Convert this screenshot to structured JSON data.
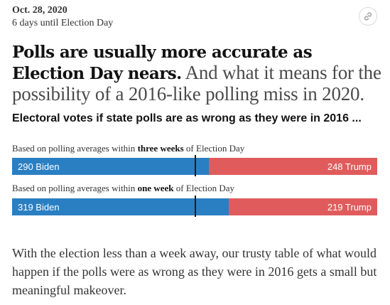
{
  "header": {
    "date": "Oct. 28, 2020",
    "countdown": "6 days until Election Day",
    "link_icon": "link-icon"
  },
  "headline": {
    "bold": "Polls are usually more accurate as Election Day nears.",
    "light": "And what it means for the possibility of a 2016-like polling miss in 2020."
  },
  "subhead": "Electoral votes if state polls are as wrong as they were in 2016 ...",
  "bars": [
    {
      "caption_pre": "Based on polling averages within ",
      "caption_bold": "three weeks",
      "caption_post": " of Election Day",
      "biden_label": "290 Biden",
      "trump_label": "248 Trump",
      "biden": 290,
      "trump": 248
    },
    {
      "caption_pre": "Based on polling averages within ",
      "caption_bold": "one week",
      "caption_post": " of Election Day",
      "biden_label": "319 Biden",
      "trump_label": "219 Trump",
      "biden": 319,
      "trump": 219
    }
  ],
  "colors": {
    "biden": "#2a7fc3",
    "trump": "#e05c5c"
  },
  "body": "With the election less than a week away, our trusty table of what would happen if the polls were as wrong as they were in 2016 gets a small but meaningful makeover."
}
